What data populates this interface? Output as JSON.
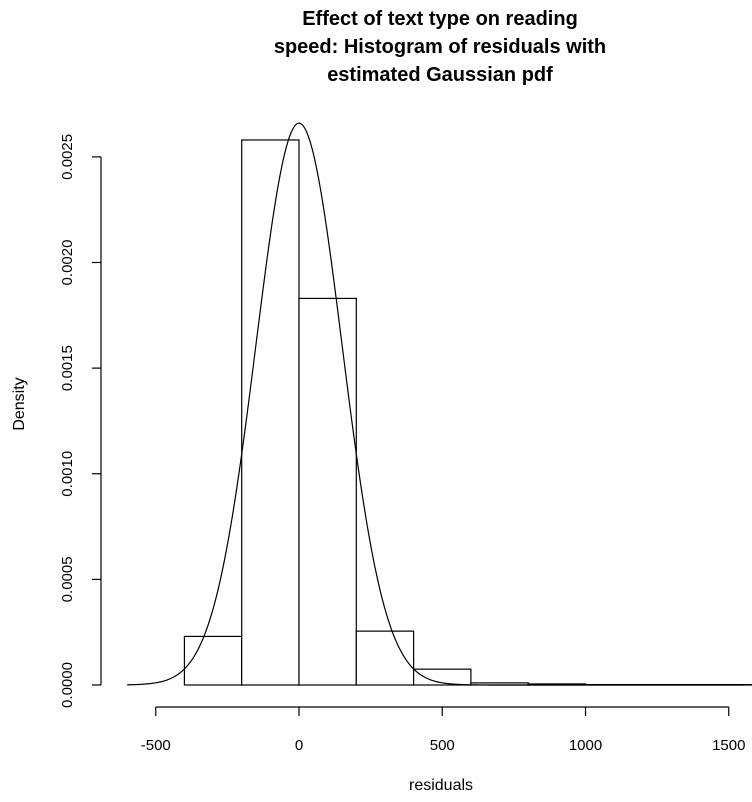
{
  "chart_data": {
    "type": "histogram",
    "title_lines": [
      "Effect of text type on reading",
      "speed: Histogram of residuals with",
      "estimated Gaussian pdf"
    ],
    "xlabel": "residuals",
    "ylabel": "Density",
    "xlim": [
      -600,
      1550
    ],
    "ylim": [
      0,
      0.0027
    ],
    "x_ticks": [
      -500,
      0,
      500,
      1000,
      1500
    ],
    "x_tick_labels": [
      "-500",
      "0",
      "500",
      "1000",
      "1500"
    ],
    "y_ticks": [
      0,
      0.0005,
      0.001,
      0.0015,
      0.002,
      0.0025
    ],
    "y_tick_labels": [
      "0.0000",
      "0.0005",
      "0.0010",
      "0.0015",
      "0.0020",
      "0.0025"
    ],
    "bins": [
      {
        "x0": -400,
        "x1": -200,
        "density": 0.00023
      },
      {
        "x0": -200,
        "x1": 0,
        "density": 0.00258
      },
      {
        "x0": 0,
        "x1": 200,
        "density": 0.00183
      },
      {
        "x0": 200,
        "x1": 400,
        "density": 0.000255
      },
      {
        "x0": 400,
        "x1": 600,
        "density": 7.5e-05
      },
      {
        "x0": 600,
        "x1": 800,
        "density": 1e-05
      },
      {
        "x0": 800,
        "x1": 1000,
        "density": 5e-06
      },
      {
        "x0": 1000,
        "x1": 1200,
        "density": 2e-06
      },
      {
        "x0": 1200,
        "x1": 1400,
        "density": 2e-06
      },
      {
        "x0": 1400,
        "x1": 1600,
        "density": 2e-06
      }
    ],
    "gaussian": {
      "mean": 0,
      "sd": 150,
      "x_range": [
        -600,
        1550
      ]
    },
    "grid": false,
    "legend": "none",
    "colors": {
      "stroke": "#000000",
      "fill": "#ffffff"
    }
  }
}
